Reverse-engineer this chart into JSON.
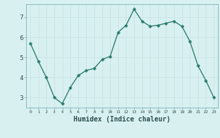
{
  "x": [
    0,
    1,
    2,
    3,
    4,
    5,
    6,
    7,
    8,
    9,
    10,
    11,
    12,
    13,
    14,
    15,
    16,
    17,
    18,
    19,
    20,
    21,
    22,
    23
  ],
  "y": [
    5.7,
    4.8,
    4.0,
    3.0,
    2.7,
    3.5,
    4.1,
    4.35,
    4.45,
    4.9,
    5.05,
    6.25,
    6.6,
    7.4,
    6.8,
    6.55,
    6.6,
    6.7,
    6.8,
    6.55,
    5.8,
    4.6,
    3.85,
    3.0
  ],
  "line_color": "#2e7d6e",
  "bg_color": "#d8f0f0",
  "grid_color": "#c8e4e4",
  "xlabel": "Humidex (Indice chaleur)",
  "xlim": [
    -0.5,
    23.5
  ],
  "ylim": [
    2.5,
    7.65
  ],
  "yticks": [
    3,
    4,
    5,
    6,
    7
  ],
  "xticks": [
    0,
    1,
    2,
    3,
    4,
    5,
    6,
    7,
    8,
    9,
    10,
    11,
    12,
    13,
    14,
    15,
    16,
    17,
    18,
    19,
    20,
    21,
    22,
    23
  ],
  "marker_size": 2.5,
  "line_width": 1.0
}
